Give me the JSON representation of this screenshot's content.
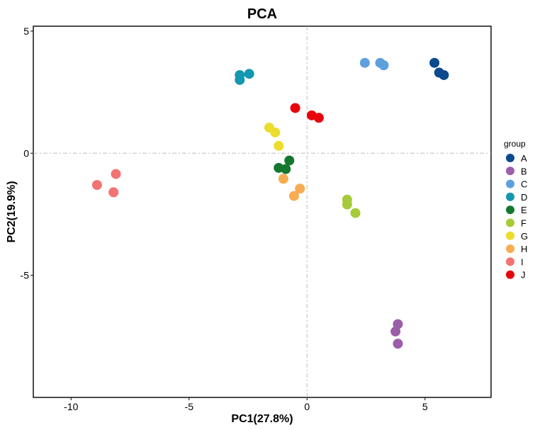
{
  "chart_data": {
    "type": "scatter",
    "title": "PCA",
    "xlabel": "PC1(27.8%)",
    "ylabel": "PC2(19.9%)",
    "xlim": [
      -11.6,
      7.8
    ],
    "ylim": [
      -10.0,
      5.2
    ],
    "x_ticks": [
      -10,
      -5,
      0,
      5
    ],
    "x_tick_labels": [
      "-10",
      "-5",
      "0",
      "5"
    ],
    "y_ticks": [
      5,
      0,
      -5
    ],
    "y_tick_labels": [
      "5",
      "0",
      "-5"
    ],
    "reference_lines": {
      "x": 0,
      "y": 0
    },
    "grid": false,
    "legend": {
      "title": "group",
      "position": "right"
    },
    "series": [
      {
        "name": "A",
        "color": "#0c4a8f",
        "points": [
          [
            5.4,
            3.7
          ],
          [
            5.6,
            3.3
          ],
          [
            5.8,
            3.2
          ]
        ]
      },
      {
        "name": "B",
        "color": "#9b5ea9",
        "points": [
          [
            3.85,
            -7.0
          ],
          [
            3.75,
            -7.3
          ],
          [
            3.85,
            -7.8
          ]
        ]
      },
      {
        "name": "C",
        "color": "#5ea0de",
        "points": [
          [
            2.45,
            3.7
          ],
          [
            3.1,
            3.7
          ],
          [
            3.25,
            3.6
          ]
        ]
      },
      {
        "name": "D",
        "color": "#1497b0",
        "points": [
          [
            -2.85,
            3.2
          ],
          [
            -2.85,
            3.0
          ],
          [
            -2.45,
            3.25
          ]
        ]
      },
      {
        "name": "E",
        "color": "#13782e",
        "points": [
          [
            -0.75,
            -0.3
          ],
          [
            -1.2,
            -0.6
          ],
          [
            -0.9,
            -0.65
          ]
        ]
      },
      {
        "name": "F",
        "color": "#a6cb3a",
        "points": [
          [
            1.7,
            -1.9
          ],
          [
            1.7,
            -2.1
          ],
          [
            2.05,
            -2.45
          ]
        ]
      },
      {
        "name": "G",
        "color": "#ecdc2c",
        "points": [
          [
            -1.6,
            1.05
          ],
          [
            -1.35,
            0.85
          ],
          [
            -1.2,
            0.3
          ]
        ]
      },
      {
        "name": "H",
        "color": "#f8ac51",
        "points": [
          [
            -1.0,
            -1.05
          ],
          [
            -0.3,
            -1.45
          ],
          [
            -0.55,
            -1.75
          ]
        ]
      },
      {
        "name": "I",
        "color": "#f37272",
        "points": [
          [
            -8.1,
            -0.85
          ],
          [
            -8.9,
            -1.3
          ],
          [
            -8.2,
            -1.6
          ]
        ]
      },
      {
        "name": "J",
        "color": "#e8040a",
        "points": [
          [
            -0.5,
            1.85
          ],
          [
            0.2,
            1.55
          ],
          [
            0.5,
            1.45
          ]
        ]
      }
    ]
  }
}
